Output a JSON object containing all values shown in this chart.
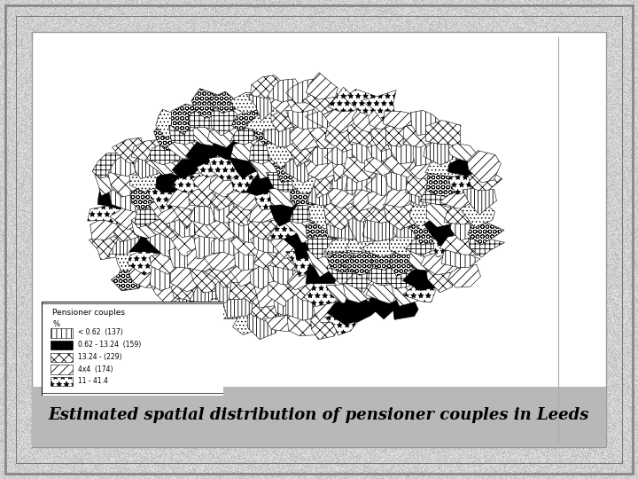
{
  "title": "Estimated spatial distribution of pensioner couples in Leeds",
  "title_fontsize": 13,
  "title_fontweight": "bold",
  "title_style": "italic",
  "legend_title_line1": "Pensioner couples",
  "legend_title_line2": "%",
  "legend_entries": [
    {
      "label": "< 0.62  (137)",
      "hatch": "|||",
      "facecolor": "white",
      "edgecolor": "black"
    },
    {
      "label": "0.62 - 13.24  (159)",
      "hatch": "...",
      "facecolor": "black",
      "edgecolor": "black"
    },
    {
      "label": "13.24 - (229)",
      "hatch": "xxx",
      "facecolor": "white",
      "edgecolor": "black"
    },
    {
      "label": "4x4  (174)",
      "hatch": "///",
      "facecolor": "white",
      "edgecolor": "black"
    },
    {
      "label": "11 - 41.4",
      "hatch": "**",
      "facecolor": "white",
      "edgecolor": "black"
    }
  ],
  "fig_width": 7.2,
  "fig_height": 5.4,
  "dpi": 100
}
